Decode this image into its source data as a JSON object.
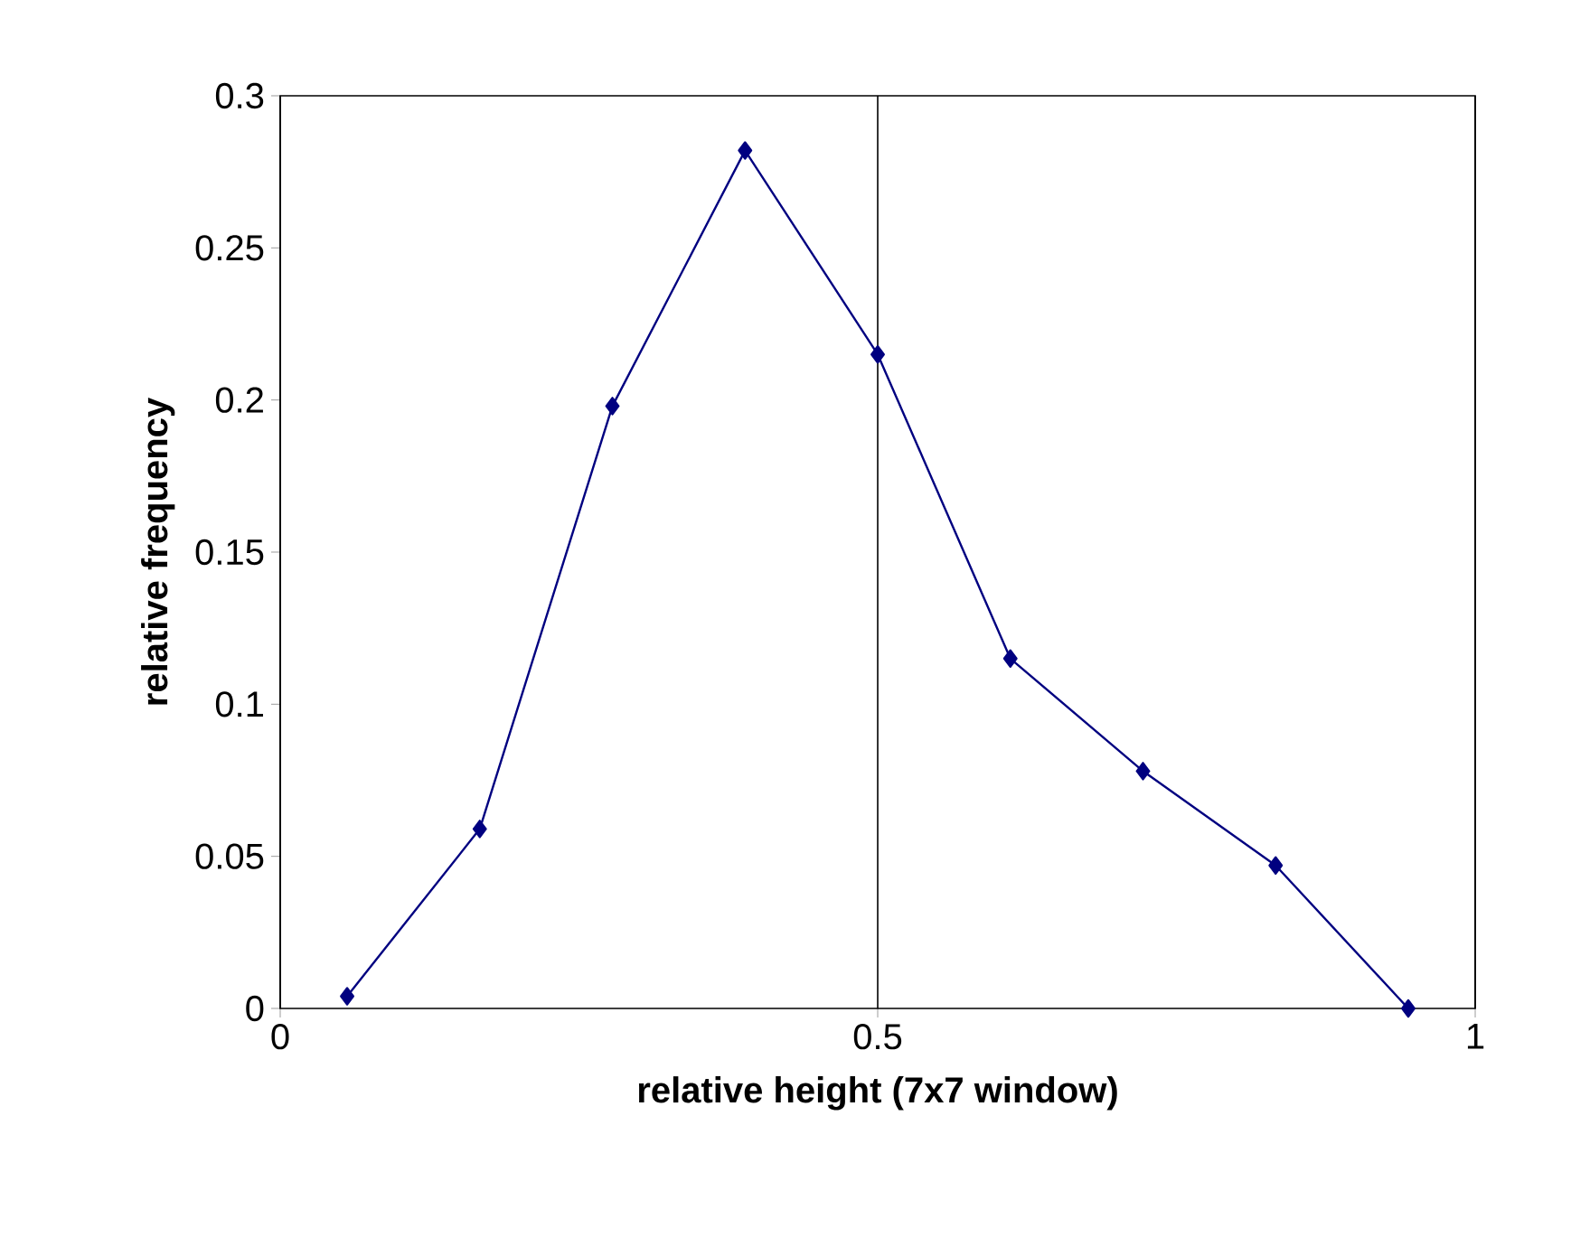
{
  "chart_data": {
    "type": "line",
    "xlabel": "relative height (7x7 window)",
    "ylabel": "relative frequency",
    "x": [
      0.056,
      0.167,
      0.278,
      0.389,
      0.5,
      0.611,
      0.722,
      0.833,
      0.944
    ],
    "series": [
      {
        "color": "#000080",
        "values": [
          0.004,
          0.059,
          0.198,
          0.282,
          0.215,
          0.115,
          0.078,
          0.047,
          0.0
        ]
      }
    ],
    "xlim": [
      0,
      1
    ],
    "xticks": [
      0,
      0.5,
      1
    ],
    "ylim": [
      0,
      0.3
    ],
    "yticks": [
      0,
      0.05,
      0.1,
      0.15,
      0.2,
      0.25,
      0.3
    ],
    "grid": "x",
    "marker": "diamond",
    "line_style": "solid"
  }
}
